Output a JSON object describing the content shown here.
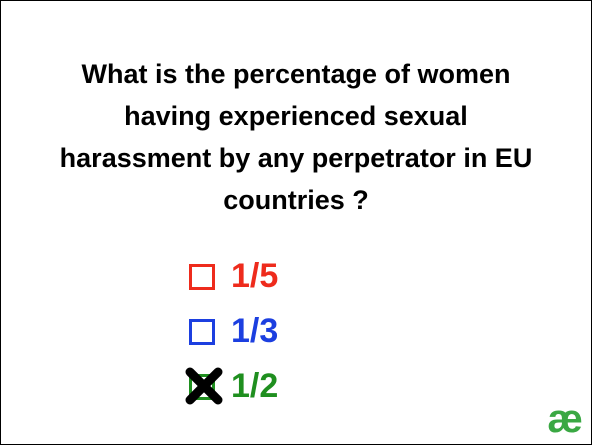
{
  "question": {
    "lines": [
      "What is the percentage of women",
      "having experienced sexual",
      "harassment by any perpetrator in EU",
      "countries ?"
    ]
  },
  "options": [
    {
      "label": "1/5",
      "color": "#ee2b1c",
      "crossed": false
    },
    {
      "label": "1/3",
      "color": "#1c3fe0",
      "crossed": false
    },
    {
      "label": "1/2",
      "color": "#1f8f1f",
      "crossed": true
    }
  ],
  "logo": {
    "text": "æ",
    "color": "#3aa843"
  }
}
